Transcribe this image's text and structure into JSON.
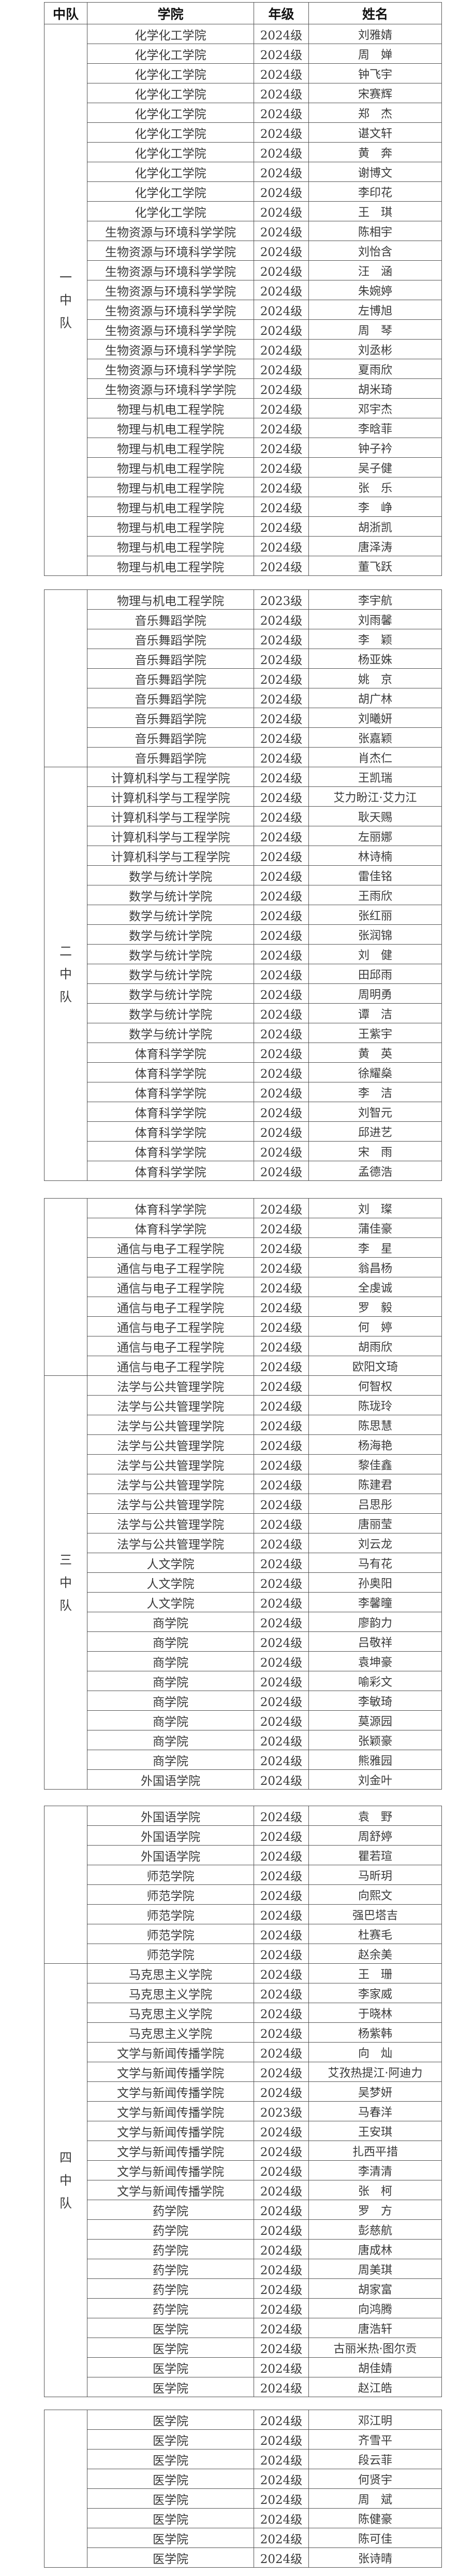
{
  "header": {
    "team": "中队",
    "college": "学院",
    "grade": "年级",
    "name": "姓名"
  },
  "tables": [
    {
      "groups": [
        {
          "label": "一中队",
          "rows": [
            [
              "化学化工学院",
              "2024级",
              "刘雅婧"
            ],
            [
              "化学化工学院",
              "2024级",
              "周　婵"
            ],
            [
              "化学化工学院",
              "2024级",
              "钟飞宇"
            ],
            [
              "化学化工学院",
              "2024级",
              "宋赛辉"
            ],
            [
              "化学化工学院",
              "2024级",
              "郑　杰"
            ],
            [
              "化学化工学院",
              "2024级",
              "谌文轩"
            ],
            [
              "化学化工学院",
              "2024级",
              "黄　奔"
            ],
            [
              "化学化工学院",
              "2024级",
              "谢博文"
            ],
            [
              "化学化工学院",
              "2024级",
              "李印花"
            ],
            [
              "化学化工学院",
              "2024级",
              "王　琪"
            ],
            [
              "生物资源与环境科学学院",
              "2024级",
              "陈相宇"
            ],
            [
              "生物资源与环境科学学院",
              "2024级",
              "刘怡含"
            ],
            [
              "生物资源与环境科学学院",
              "2024级",
              "汪　涵"
            ],
            [
              "生物资源与环境科学学院",
              "2024级",
              "朱婉婷"
            ],
            [
              "生物资源与环境科学学院",
              "2024级",
              "左博旭"
            ],
            [
              "生物资源与环境科学学院",
              "2024级",
              "周　琴"
            ],
            [
              "生物资源与环境科学学院",
              "2024级",
              "刘丞彬"
            ],
            [
              "生物资源与环境科学学院",
              "2024级",
              "夏雨欣"
            ],
            [
              "生物资源与环境科学学院",
              "2024级",
              "胡米琦"
            ],
            [
              "物理与机电工程学院",
              "2024级",
              "邓宇杰"
            ],
            [
              "物理与机电工程学院",
              "2024级",
              "李晗菲"
            ],
            [
              "物理与机电工程学院",
              "2024级",
              "钟子衿"
            ],
            [
              "物理与机电工程学院",
              "2024级",
              "吴子健"
            ],
            [
              "物理与机电工程学院",
              "2024级",
              "张　乐"
            ],
            [
              "物理与机电工程学院",
              "2024级",
              "李　峥"
            ],
            [
              "物理与机电工程学院",
              "2024级",
              "胡浙凯"
            ],
            [
              "物理与机电工程学院",
              "2024级",
              "唐泽涛"
            ],
            [
              "物理与机电工程学院",
              "2024级",
              "董飞跃"
            ]
          ]
        }
      ]
    },
    {
      "groups": [
        {
          "label": "",
          "rows": [
            [
              "物理与机电工程学院",
              "2023级",
              "李宇航"
            ],
            [
              "音乐舞蹈学院",
              "2024级",
              "刘雨馨"
            ],
            [
              "音乐舞蹈学院",
              "2024级",
              "李　颖"
            ],
            [
              "音乐舞蹈学院",
              "2024级",
              "杨亚姝"
            ],
            [
              "音乐舞蹈学院",
              "2024级",
              "姚　京"
            ],
            [
              "音乐舞蹈学院",
              "2024级",
              "胡广林"
            ],
            [
              "音乐舞蹈学院",
              "2024级",
              "刘曦妍"
            ],
            [
              "音乐舞蹈学院",
              "2024级",
              "张嘉颖"
            ],
            [
              "音乐舞蹈学院",
              "2024级",
              "肖杰仁"
            ]
          ]
        },
        {
          "label": "二中队",
          "rows": [
            [
              "计算机科学与工程学院",
              "2024级",
              "王凯瑞"
            ],
            [
              "计算机科学与工程学院",
              "2024级",
              "艾力盼江·艾力江"
            ],
            [
              "计算机科学与工程学院",
              "2024级",
              "耿天赐"
            ],
            [
              "计算机科学与工程学院",
              "2024级",
              "左丽娜"
            ],
            [
              "计算机科学与工程学院",
              "2024级",
              "林诗楠"
            ],
            [
              "数学与统计学院",
              "2024级",
              "雷佳铭"
            ],
            [
              "数学与统计学院",
              "2024级",
              "王雨欣"
            ],
            [
              "数学与统计学院",
              "2024级",
              "张红丽"
            ],
            [
              "数学与统计学院",
              "2024级",
              "张润锦"
            ],
            [
              "数学与统计学院",
              "2024级",
              "刘　健"
            ],
            [
              "数学与统计学院",
              "2024级",
              "田邱雨"
            ],
            [
              "数学与统计学院",
              "2024级",
              "周明勇"
            ],
            [
              "数学与统计学院",
              "2024级",
              "谭　洁"
            ],
            [
              "数学与统计学院",
              "2024级",
              "王紫宇"
            ],
            [
              "体育科学学院",
              "2024级",
              "黄　英"
            ],
            [
              "体育科学学院",
              "2024级",
              "徐耀燊"
            ],
            [
              "体育科学学院",
              "2024级",
              "李　洁"
            ],
            [
              "体育科学学院",
              "2024级",
              "刘智元"
            ],
            [
              "体育科学学院",
              "2024级",
              "邱进艺"
            ],
            [
              "体育科学学院",
              "2024级",
              "宋　雨"
            ],
            [
              "体育科学学院",
              "2024级",
              "孟德浩"
            ]
          ]
        }
      ]
    },
    {
      "groups": [
        {
          "label": "",
          "rows": [
            [
              "体育科学学院",
              "2024级",
              "刘　璨"
            ],
            [
              "体育科学学院",
              "2024级",
              "蒲佳豪"
            ],
            [
              "通信与电子工程学院",
              "2024级",
              "李　星"
            ],
            [
              "通信与电子工程学院",
              "2024级",
              "翁昌杨"
            ],
            [
              "通信与电子工程学院",
              "2024级",
              "全虔诚"
            ],
            [
              "通信与电子工程学院",
              "2024级",
              "罗　毅"
            ],
            [
              "通信与电子工程学院",
              "2024级",
              "何　婷"
            ],
            [
              "通信与电子工程学院",
              "2024级",
              "胡雨欣"
            ],
            [
              "通信与电子工程学院",
              "2024级",
              "欧阳文琦"
            ]
          ]
        },
        {
          "label": "三中队",
          "rows": [
            [
              "法学与公共管理学院",
              "2024级",
              "何智权"
            ],
            [
              "法学与公共管理学院",
              "2024级",
              "陈珑玲"
            ],
            [
              "法学与公共管理学院",
              "2024级",
              "陈思慧"
            ],
            [
              "法学与公共管理学院",
              "2024级",
              "杨海艳"
            ],
            [
              "法学与公共管理学院",
              "2024级",
              "黎佳鑫"
            ],
            [
              "法学与公共管理学院",
              "2024级",
              "陈建君"
            ],
            [
              "法学与公共管理学院",
              "2024级",
              "吕思彤"
            ],
            [
              "法学与公共管理学院",
              "2024级",
              "唐丽莹"
            ],
            [
              "法学与公共管理学院",
              "2024级",
              "刘云龙"
            ],
            [
              "人文学院",
              "2024级",
              "马有花"
            ],
            [
              "人文学院",
              "2024级",
              "孙奥阳"
            ],
            [
              "人文学院",
              "2024级",
              "李馨曈"
            ],
            [
              "商学院",
              "2024级",
              "廖韵力"
            ],
            [
              "商学院",
              "2024级",
              "吕敬祥"
            ],
            [
              "商学院",
              "2024级",
              "袁坤豪"
            ],
            [
              "商学院",
              "2024级",
              "喻彩文"
            ],
            [
              "商学院",
              "2024级",
              "李敏琦"
            ],
            [
              "商学院",
              "2024级",
              "莫源园"
            ],
            [
              "商学院",
              "2024级",
              "张颖豪"
            ],
            [
              "商学院",
              "2024级",
              "熊雅园"
            ],
            [
              "外国语学院",
              "2024级",
              "刘金叶"
            ]
          ]
        }
      ]
    },
    {
      "groups": [
        {
          "label": "",
          "rows": [
            [
              "外国语学院",
              "2024级",
              "袁　野"
            ],
            [
              "外国语学院",
              "2024级",
              "周舒婷"
            ],
            [
              "外国语学院",
              "2024级",
              "瞿若瑄"
            ],
            [
              "师范学院",
              "2024级",
              "马昕玥"
            ],
            [
              "师范学院",
              "2024级",
              "向熙文"
            ],
            [
              "师范学院",
              "2024级",
              "强巴塔吉"
            ],
            [
              "师范学院",
              "2024级",
              "杜赛毛"
            ],
            [
              "师范学院",
              "2024级",
              "赵余美"
            ]
          ]
        },
        {
          "label": "四中队",
          "rows": [
            [
              "马克思主义学院",
              "2024级",
              "王　珊"
            ],
            [
              "马克思主义学院",
              "2024级",
              "李家威"
            ],
            [
              "马克思主义学院",
              "2024级",
              "于晓林"
            ],
            [
              "马克思主义学院",
              "2024级",
              "杨紫韩"
            ],
            [
              "文学与新闻传播学院",
              "2024级",
              "向　灿"
            ],
            [
              "文学与新闻传播学院",
              "2024级",
              "艾孜热提江·阿迪力"
            ],
            [
              "文学与新闻传播学院",
              "2024级",
              "吴梦妍"
            ],
            [
              "文学与新闻传播学院",
              "2023级",
              "马春洋"
            ],
            [
              "文学与新闻传播学院",
              "2024级",
              "王安琪"
            ],
            [
              "文学与新闻传播学院",
              "2024级",
              "扎西平措"
            ],
            [
              "文学与新闻传播学院",
              "2024级",
              "李清清"
            ],
            [
              "文学与新闻传播学院",
              "2024级",
              "张　柯"
            ],
            [
              "药学院",
              "2024级",
              "罗　方"
            ],
            [
              "药学院",
              "2024级",
              "彭慈航"
            ],
            [
              "药学院",
              "2024级",
              "唐成林"
            ],
            [
              "药学院",
              "2024级",
              "周美琪"
            ],
            [
              "药学院",
              "2024级",
              "胡家富"
            ],
            [
              "药学院",
              "2024级",
              "向鸿腾"
            ],
            [
              "医学院",
              "2024级",
              "唐浩轩"
            ],
            [
              "医学院",
              "2024级",
              "古丽米热·图尔贡"
            ],
            [
              "医学院",
              "2024级",
              "胡佳婧"
            ],
            [
              "医学院",
              "2024级",
              "赵江皓"
            ]
          ]
        }
      ]
    },
    {
      "groups": [
        {
          "label": "",
          "rows": [
            [
              "医学院",
              "2024级",
              "邓江明"
            ],
            [
              "医学院",
              "2024级",
              "齐雪平"
            ],
            [
              "医学院",
              "2024级",
              "段云菲"
            ],
            [
              "医学院",
              "2024级",
              "何贤宇"
            ],
            [
              "医学院",
              "2024级",
              "周　斌"
            ],
            [
              "医学院",
              "2024级",
              "陈健豪"
            ],
            [
              "医学院",
              "2024级",
              "陈可佳"
            ],
            [
              "医学院",
              "2024级",
              "张诗晴"
            ]
          ]
        }
      ]
    }
  ]
}
